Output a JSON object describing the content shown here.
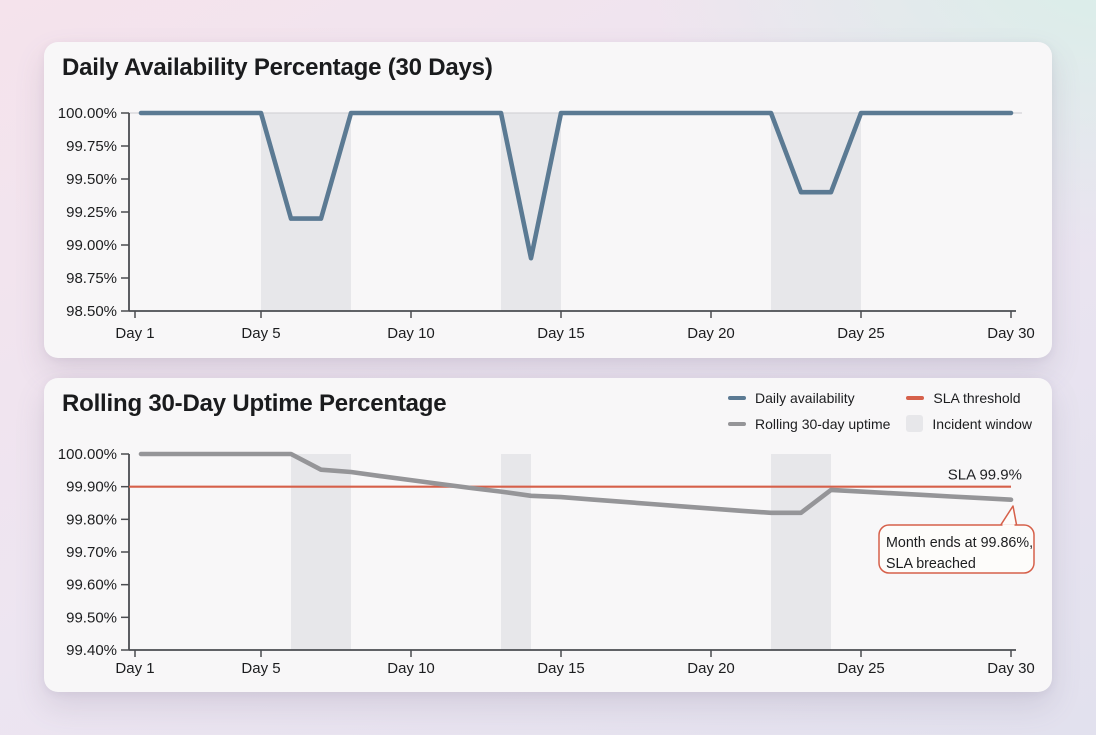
{
  "page": {
    "background_colors": {
      "top_left_pink": "#f5e3ec",
      "top_right_mint": "#d8efe8",
      "bottom_lavender": "#e2e1ee",
      "card_background": "#f8f7f8"
    }
  },
  "chart_data": [
    {
      "type": "line",
      "title": "Daily Availability Percentage (30 Days)",
      "x_unit": "day",
      "x_range": [
        1,
        30
      ],
      "ylim": [
        98.5,
        100.0
      ],
      "y_tick_labels": [
        "100.00%",
        "99.75%",
        "99.50%",
        "99.25%",
        "99.00%",
        "98.75%",
        "98.50%"
      ],
      "x_tick_days": [
        1,
        5,
        10,
        15,
        20,
        25,
        30
      ],
      "x_tick_labels": [
        "Day 1",
        "Day 5",
        "Day 10",
        "Day 15",
        "Day 20",
        "Day 25",
        "Day 30"
      ],
      "gridline_at": 100.0,
      "window_color": "#e7e7ea",
      "series": [
        {
          "name": "Daily availability",
          "color": "#5b7a93",
          "values": [
            100,
            100,
            100,
            100,
            100,
            99.2,
            99.2,
            100,
            100,
            100,
            100,
            100,
            100,
            98.9,
            100,
            100,
            100,
            100,
            100,
            100,
            100,
            100,
            99.4,
            99.4,
            100,
            100,
            100,
            100,
            100,
            100
          ]
        }
      ],
      "incident_windows": [
        [
          5,
          8
        ],
        [
          13,
          15
        ],
        [
          22,
          25
        ]
      ]
    },
    {
      "type": "line",
      "title": "Rolling 30-Day Uptime Percentage",
      "x_unit": "day",
      "x_range": [
        1,
        30
      ],
      "ylim": [
        99.4,
        100.0
      ],
      "y_tick_labels": [
        "100.00%",
        "99.90%",
        "99.80%",
        "99.70%",
        "99.60%",
        "99.50%",
        "99.40%"
      ],
      "x_tick_days": [
        1,
        5,
        10,
        15,
        20,
        25,
        30
      ],
      "x_tick_labels": [
        "Day 1",
        "Day 5",
        "Day 10",
        "Day 15",
        "Day 20",
        "Day 25",
        "Day 30"
      ],
      "window_color": "#e7e7ea",
      "series": [
        {
          "name": "Rolling 30-day uptime",
          "color": "#959598",
          "values": [
            100,
            100,
            100,
            100,
            100,
            100,
            99.952,
            99.945,
            99.932,
            99.92,
            99.908,
            99.896,
            99.885,
            99.872,
            99.868,
            99.861,
            99.854,
            99.847,
            99.84,
            99.833,
            99.826,
            99.82,
            99.82,
            99.89,
            99.885,
            99.88,
            99.875,
            99.87,
            99.865,
            99.86
          ]
        }
      ],
      "incident_windows": [
        [
          6,
          8
        ],
        [
          13,
          14
        ],
        [
          22,
          24
        ]
      ],
      "sla": {
        "value": 99.9,
        "label": "SLA 99.9%",
        "color": "#d6604a"
      },
      "annotation": {
        "lines": [
          "Month ends at 99.86%,",
          "SLA breached"
        ],
        "border_color": "#d6604a",
        "fill_color": "#fdfcfa"
      },
      "legend": [
        {
          "label": "Daily availability",
          "swatch": "line",
          "color": "#5b7a93"
        },
        {
          "label": "Rolling 30-day uptime",
          "swatch": "line",
          "color": "#959598"
        },
        {
          "label": "SLA threshold",
          "swatch": "line",
          "color": "#d6604a"
        },
        {
          "label": "Incident window",
          "swatch": "box",
          "color": "#e7e7ea"
        }
      ]
    }
  ]
}
